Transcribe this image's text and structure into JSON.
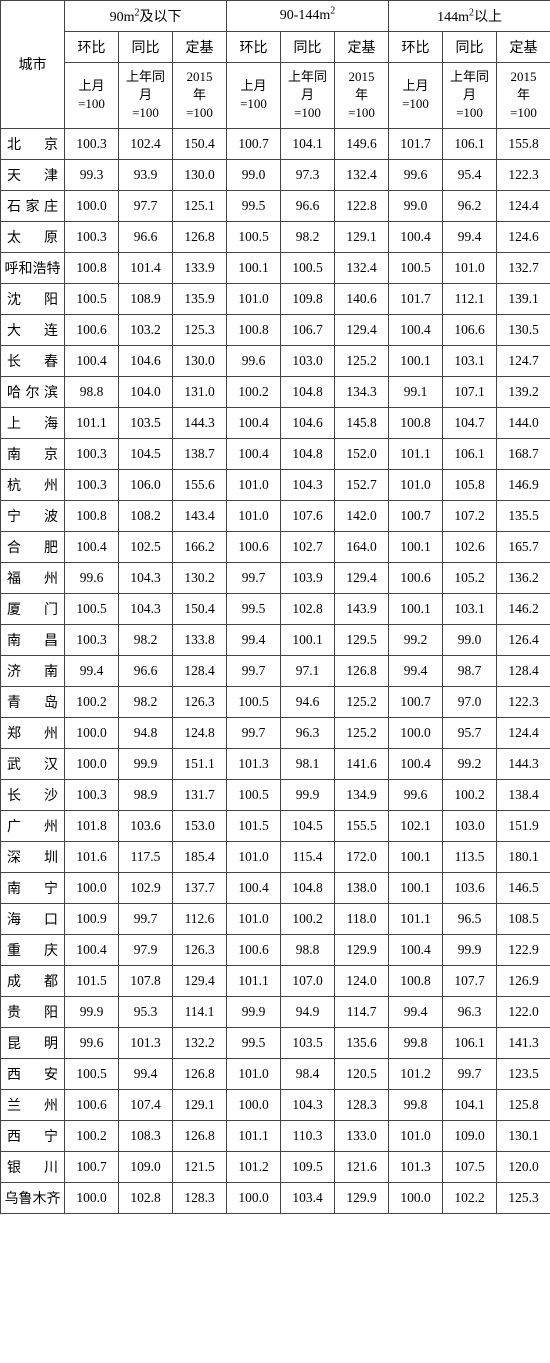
{
  "header": {
    "city_label": "城市",
    "groups": [
      {
        "title_pre": "90m",
        "title_post": "及以下"
      },
      {
        "title_pre": "90-144m",
        "title_post": ""
      },
      {
        "title_pre": "144m",
        "title_post": "以上"
      }
    ],
    "sub": [
      "环比",
      "同比",
      "定基"
    ],
    "base": [
      {
        "l1": "上月",
        "l2": "=100"
      },
      {
        "l1": "上年同",
        "l2": "月",
        "l3": "=100"
      },
      {
        "l1": "2015",
        "l2": "年",
        "l3": "=100"
      }
    ]
  },
  "rows": [
    {
      "city": "北　京",
      "v": [
        "100.3",
        "102.4",
        "150.4",
        "100.7",
        "104.1",
        "149.6",
        "101.7",
        "106.1",
        "155.8"
      ]
    },
    {
      "city": "天　津",
      "v": [
        "99.3",
        "93.9",
        "130.0",
        "99.0",
        "97.3",
        "132.4",
        "99.6",
        "95.4",
        "122.3"
      ]
    },
    {
      "city": "石家庄",
      "v": [
        "100.0",
        "97.7",
        "125.1",
        "99.5",
        "96.6",
        "122.8",
        "99.0",
        "96.2",
        "124.4"
      ]
    },
    {
      "city": "太　原",
      "v": [
        "100.3",
        "96.6",
        "126.8",
        "100.5",
        "98.2",
        "129.1",
        "100.4",
        "99.4",
        "124.6"
      ]
    },
    {
      "city": "呼和浩特",
      "v": [
        "100.8",
        "101.4",
        "133.9",
        "100.1",
        "100.5",
        "132.4",
        "100.5",
        "101.0",
        "132.7"
      ]
    },
    {
      "city": "沈　阳",
      "v": [
        "100.5",
        "108.9",
        "135.9",
        "101.0",
        "109.8",
        "140.6",
        "101.7",
        "112.1",
        "139.1"
      ]
    },
    {
      "city": "大　连",
      "v": [
        "100.6",
        "103.2",
        "125.3",
        "100.8",
        "106.7",
        "129.4",
        "100.4",
        "106.6",
        "130.5"
      ]
    },
    {
      "city": "长　春",
      "v": [
        "100.4",
        "104.6",
        "130.0",
        "99.6",
        "103.0",
        "125.2",
        "100.1",
        "103.1",
        "124.7"
      ]
    },
    {
      "city": "哈尔滨",
      "v": [
        "98.8",
        "104.0",
        "131.0",
        "100.2",
        "104.8",
        "134.3",
        "99.1",
        "107.1",
        "139.2"
      ]
    },
    {
      "city": "上　海",
      "v": [
        "101.1",
        "103.5",
        "144.3",
        "100.4",
        "104.6",
        "145.8",
        "100.8",
        "104.7",
        "144.0"
      ]
    },
    {
      "city": "南　京",
      "v": [
        "100.3",
        "104.5",
        "138.7",
        "100.4",
        "104.8",
        "152.0",
        "101.1",
        "106.1",
        "168.7"
      ]
    },
    {
      "city": "杭　州",
      "v": [
        "100.3",
        "106.0",
        "155.6",
        "101.0",
        "104.3",
        "152.7",
        "101.0",
        "105.8",
        "146.9"
      ]
    },
    {
      "city": "宁　波",
      "v": [
        "100.8",
        "108.2",
        "143.4",
        "101.0",
        "107.6",
        "142.0",
        "100.7",
        "107.2",
        "135.5"
      ]
    },
    {
      "city": "合　肥",
      "v": [
        "100.4",
        "102.5",
        "166.2",
        "100.6",
        "102.7",
        "164.0",
        "100.1",
        "102.6",
        "165.7"
      ]
    },
    {
      "city": "福　州",
      "v": [
        "99.6",
        "104.3",
        "130.2",
        "99.7",
        "103.9",
        "129.4",
        "100.6",
        "105.2",
        "136.2"
      ]
    },
    {
      "city": "厦　门",
      "v": [
        "100.5",
        "104.3",
        "150.4",
        "99.5",
        "102.8",
        "143.9",
        "100.1",
        "103.1",
        "146.2"
      ]
    },
    {
      "city": "南　昌",
      "v": [
        "100.3",
        "98.2",
        "133.8",
        "99.4",
        "100.1",
        "129.5",
        "99.2",
        "99.0",
        "126.4"
      ]
    },
    {
      "city": "济　南",
      "v": [
        "99.4",
        "96.6",
        "128.4",
        "99.7",
        "97.1",
        "126.8",
        "99.4",
        "98.7",
        "128.4"
      ]
    },
    {
      "city": "青　岛",
      "v": [
        "100.2",
        "98.2",
        "126.3",
        "100.5",
        "94.6",
        "125.2",
        "100.7",
        "97.0",
        "122.3"
      ]
    },
    {
      "city": "郑　州",
      "v": [
        "100.0",
        "94.8",
        "124.8",
        "99.7",
        "96.3",
        "125.2",
        "100.0",
        "95.7",
        "124.4"
      ]
    },
    {
      "city": "武　汉",
      "v": [
        "100.0",
        "99.9",
        "151.1",
        "101.3",
        "98.1",
        "141.6",
        "100.4",
        "99.2",
        "144.3"
      ]
    },
    {
      "city": "长　沙",
      "v": [
        "100.3",
        "98.9",
        "131.7",
        "100.5",
        "99.9",
        "134.9",
        "99.6",
        "100.2",
        "138.4"
      ]
    },
    {
      "city": "广　州",
      "v": [
        "101.8",
        "103.6",
        "153.0",
        "101.5",
        "104.5",
        "155.5",
        "102.1",
        "103.0",
        "151.9"
      ]
    },
    {
      "city": "深　圳",
      "v": [
        "101.6",
        "117.5",
        "185.4",
        "101.0",
        "115.4",
        "172.0",
        "100.1",
        "113.5",
        "180.1"
      ]
    },
    {
      "city": "南　宁",
      "v": [
        "100.0",
        "102.9",
        "137.7",
        "100.4",
        "104.8",
        "138.0",
        "100.1",
        "103.6",
        "146.5"
      ]
    },
    {
      "city": "海　口",
      "v": [
        "100.9",
        "99.7",
        "112.6",
        "101.0",
        "100.2",
        "118.0",
        "101.1",
        "96.5",
        "108.5"
      ]
    },
    {
      "city": "重　庆",
      "v": [
        "100.4",
        "97.9",
        "126.3",
        "100.6",
        "98.8",
        "129.9",
        "100.4",
        "99.9",
        "122.9"
      ]
    },
    {
      "city": "成　都",
      "v": [
        "101.5",
        "107.8",
        "129.4",
        "101.1",
        "107.0",
        "124.0",
        "100.8",
        "107.7",
        "126.9"
      ]
    },
    {
      "city": "贵　阳",
      "v": [
        "99.9",
        "95.3",
        "114.1",
        "99.9",
        "94.9",
        "114.7",
        "99.4",
        "96.3",
        "122.0"
      ]
    },
    {
      "city": "昆　明",
      "v": [
        "99.6",
        "101.3",
        "132.2",
        "99.5",
        "103.5",
        "135.6",
        "99.8",
        "106.1",
        "141.3"
      ]
    },
    {
      "city": "西　安",
      "v": [
        "100.5",
        "99.4",
        "126.8",
        "101.0",
        "98.4",
        "120.5",
        "101.2",
        "99.7",
        "123.5"
      ]
    },
    {
      "city": "兰　州",
      "v": [
        "100.6",
        "107.4",
        "129.1",
        "100.0",
        "104.3",
        "128.3",
        "99.8",
        "104.1",
        "125.8"
      ]
    },
    {
      "city": "西　宁",
      "v": [
        "100.2",
        "108.3",
        "126.8",
        "101.1",
        "110.3",
        "133.0",
        "101.0",
        "109.0",
        "130.1"
      ]
    },
    {
      "city": "银　川",
      "v": [
        "100.7",
        "109.0",
        "121.5",
        "101.2",
        "109.5",
        "121.6",
        "101.3",
        "107.5",
        "120.0"
      ]
    },
    {
      "city": "乌鲁木齐",
      "v": [
        "100.0",
        "102.8",
        "128.3",
        "100.0",
        "103.4",
        "129.9",
        "100.0",
        "102.2",
        "125.3"
      ]
    }
  ]
}
